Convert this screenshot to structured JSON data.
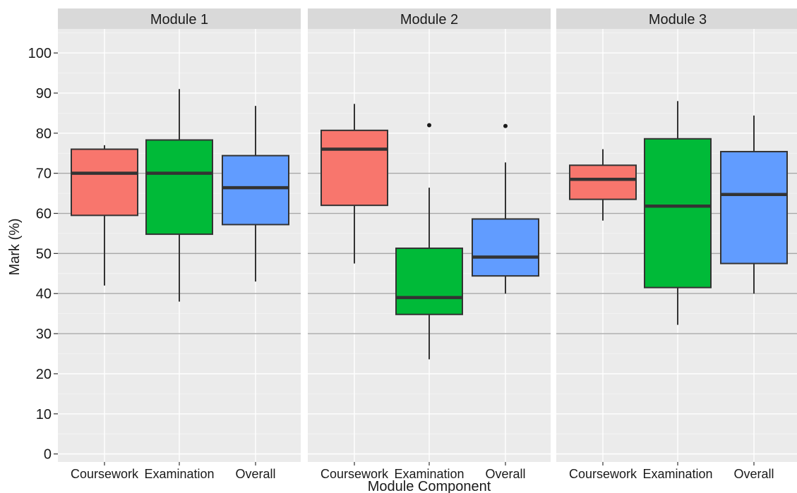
{
  "chart_data": {
    "type": "boxplot",
    "xlabel": "Module Component",
    "ylabel": "Mark (%)",
    "ylim": [
      -2,
      106
    ],
    "y_ticks": [
      0,
      10,
      20,
      30,
      40,
      50,
      60,
      70,
      80,
      90,
      100
    ],
    "categories": [
      "Coursework",
      "Examination",
      "Overall"
    ],
    "colors": {
      "Coursework": "#F8766D",
      "Examination": "#00BA38",
      "Overall": "#619CFF"
    },
    "reference_lines": [
      30,
      40,
      50,
      60,
      70
    ],
    "panels": [
      {
        "title": "Module 1",
        "boxes": [
          {
            "category": "Coursework",
            "whisker_low": 42,
            "q1": 59.5,
            "median": 70,
            "q3": 76,
            "whisker_high": 77,
            "outliers": []
          },
          {
            "category": "Examination",
            "whisker_low": 38,
            "q1": 54.8,
            "median": 70,
            "q3": 78.3,
            "whisker_high": 91,
            "outliers": []
          },
          {
            "category": "Overall",
            "whisker_low": 43,
            "q1": 57.2,
            "median": 66.4,
            "q3": 74.4,
            "whisker_high": 86.8,
            "outliers": []
          }
        ]
      },
      {
        "title": "Module 2",
        "boxes": [
          {
            "category": "Coursework",
            "whisker_low": 47.5,
            "q1": 62,
            "median": 76,
            "q3": 80.7,
            "whisker_high": 87.3,
            "outliers": []
          },
          {
            "category": "Examination",
            "whisker_low": 23.6,
            "q1": 34.8,
            "median": 39,
            "q3": 51.3,
            "whisker_high": 66.4,
            "outliers": [
              82
            ]
          },
          {
            "category": "Overall",
            "whisker_low": 40,
            "q1": 44.4,
            "median": 49.1,
            "q3": 58.6,
            "whisker_high": 72.7,
            "outliers": [
              81.8
            ]
          }
        ]
      },
      {
        "title": "Module 3",
        "boxes": [
          {
            "category": "Coursework",
            "whisker_low": 58.2,
            "q1": 63.5,
            "median": 68.5,
            "q3": 72,
            "whisker_high": 76,
            "outliers": []
          },
          {
            "category": "Examination",
            "whisker_low": 32.2,
            "q1": 41.5,
            "median": 61.8,
            "q3": 78.6,
            "whisker_high": 88,
            "outliers": []
          },
          {
            "category": "Overall",
            "whisker_low": 40,
            "q1": 47.5,
            "median": 64.7,
            "q3": 75.4,
            "whisker_high": 84.4,
            "outliers": []
          }
        ]
      }
    ]
  }
}
